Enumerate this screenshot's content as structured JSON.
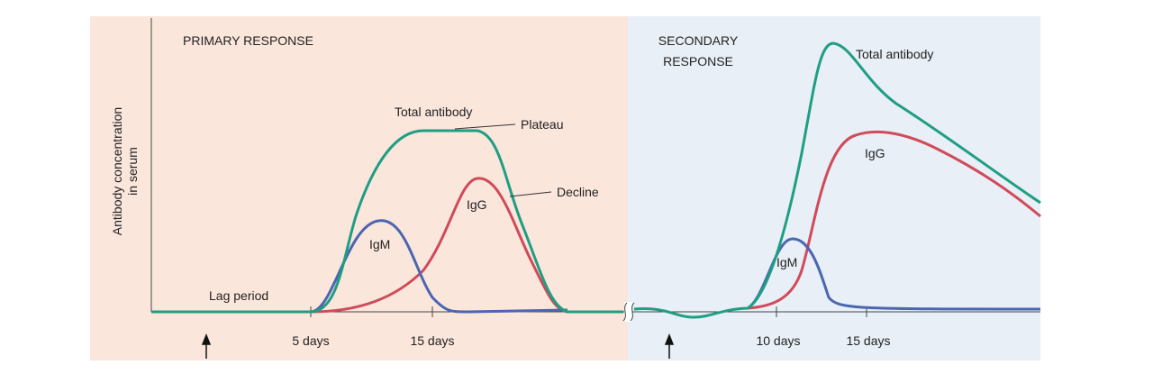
{
  "y_axis_label": [
    "Antibody concentration",
    "in serum"
  ],
  "primary": {
    "title": "PRIMARY RESPONSE",
    "total": "Total antibody",
    "plateau": "Plateau",
    "decline": "Decline",
    "igg": "IgG",
    "igm": "IgM",
    "lag": "Lag period",
    "ticks": [
      "5 days",
      "15 days"
    ]
  },
  "secondary": {
    "title": [
      "SECONDARY",
      "RESPONSE"
    ],
    "total": "Total antibody",
    "igg": "IgG",
    "igm": "IgM",
    "ticks": [
      "10 days",
      "15 days"
    ]
  }
}
